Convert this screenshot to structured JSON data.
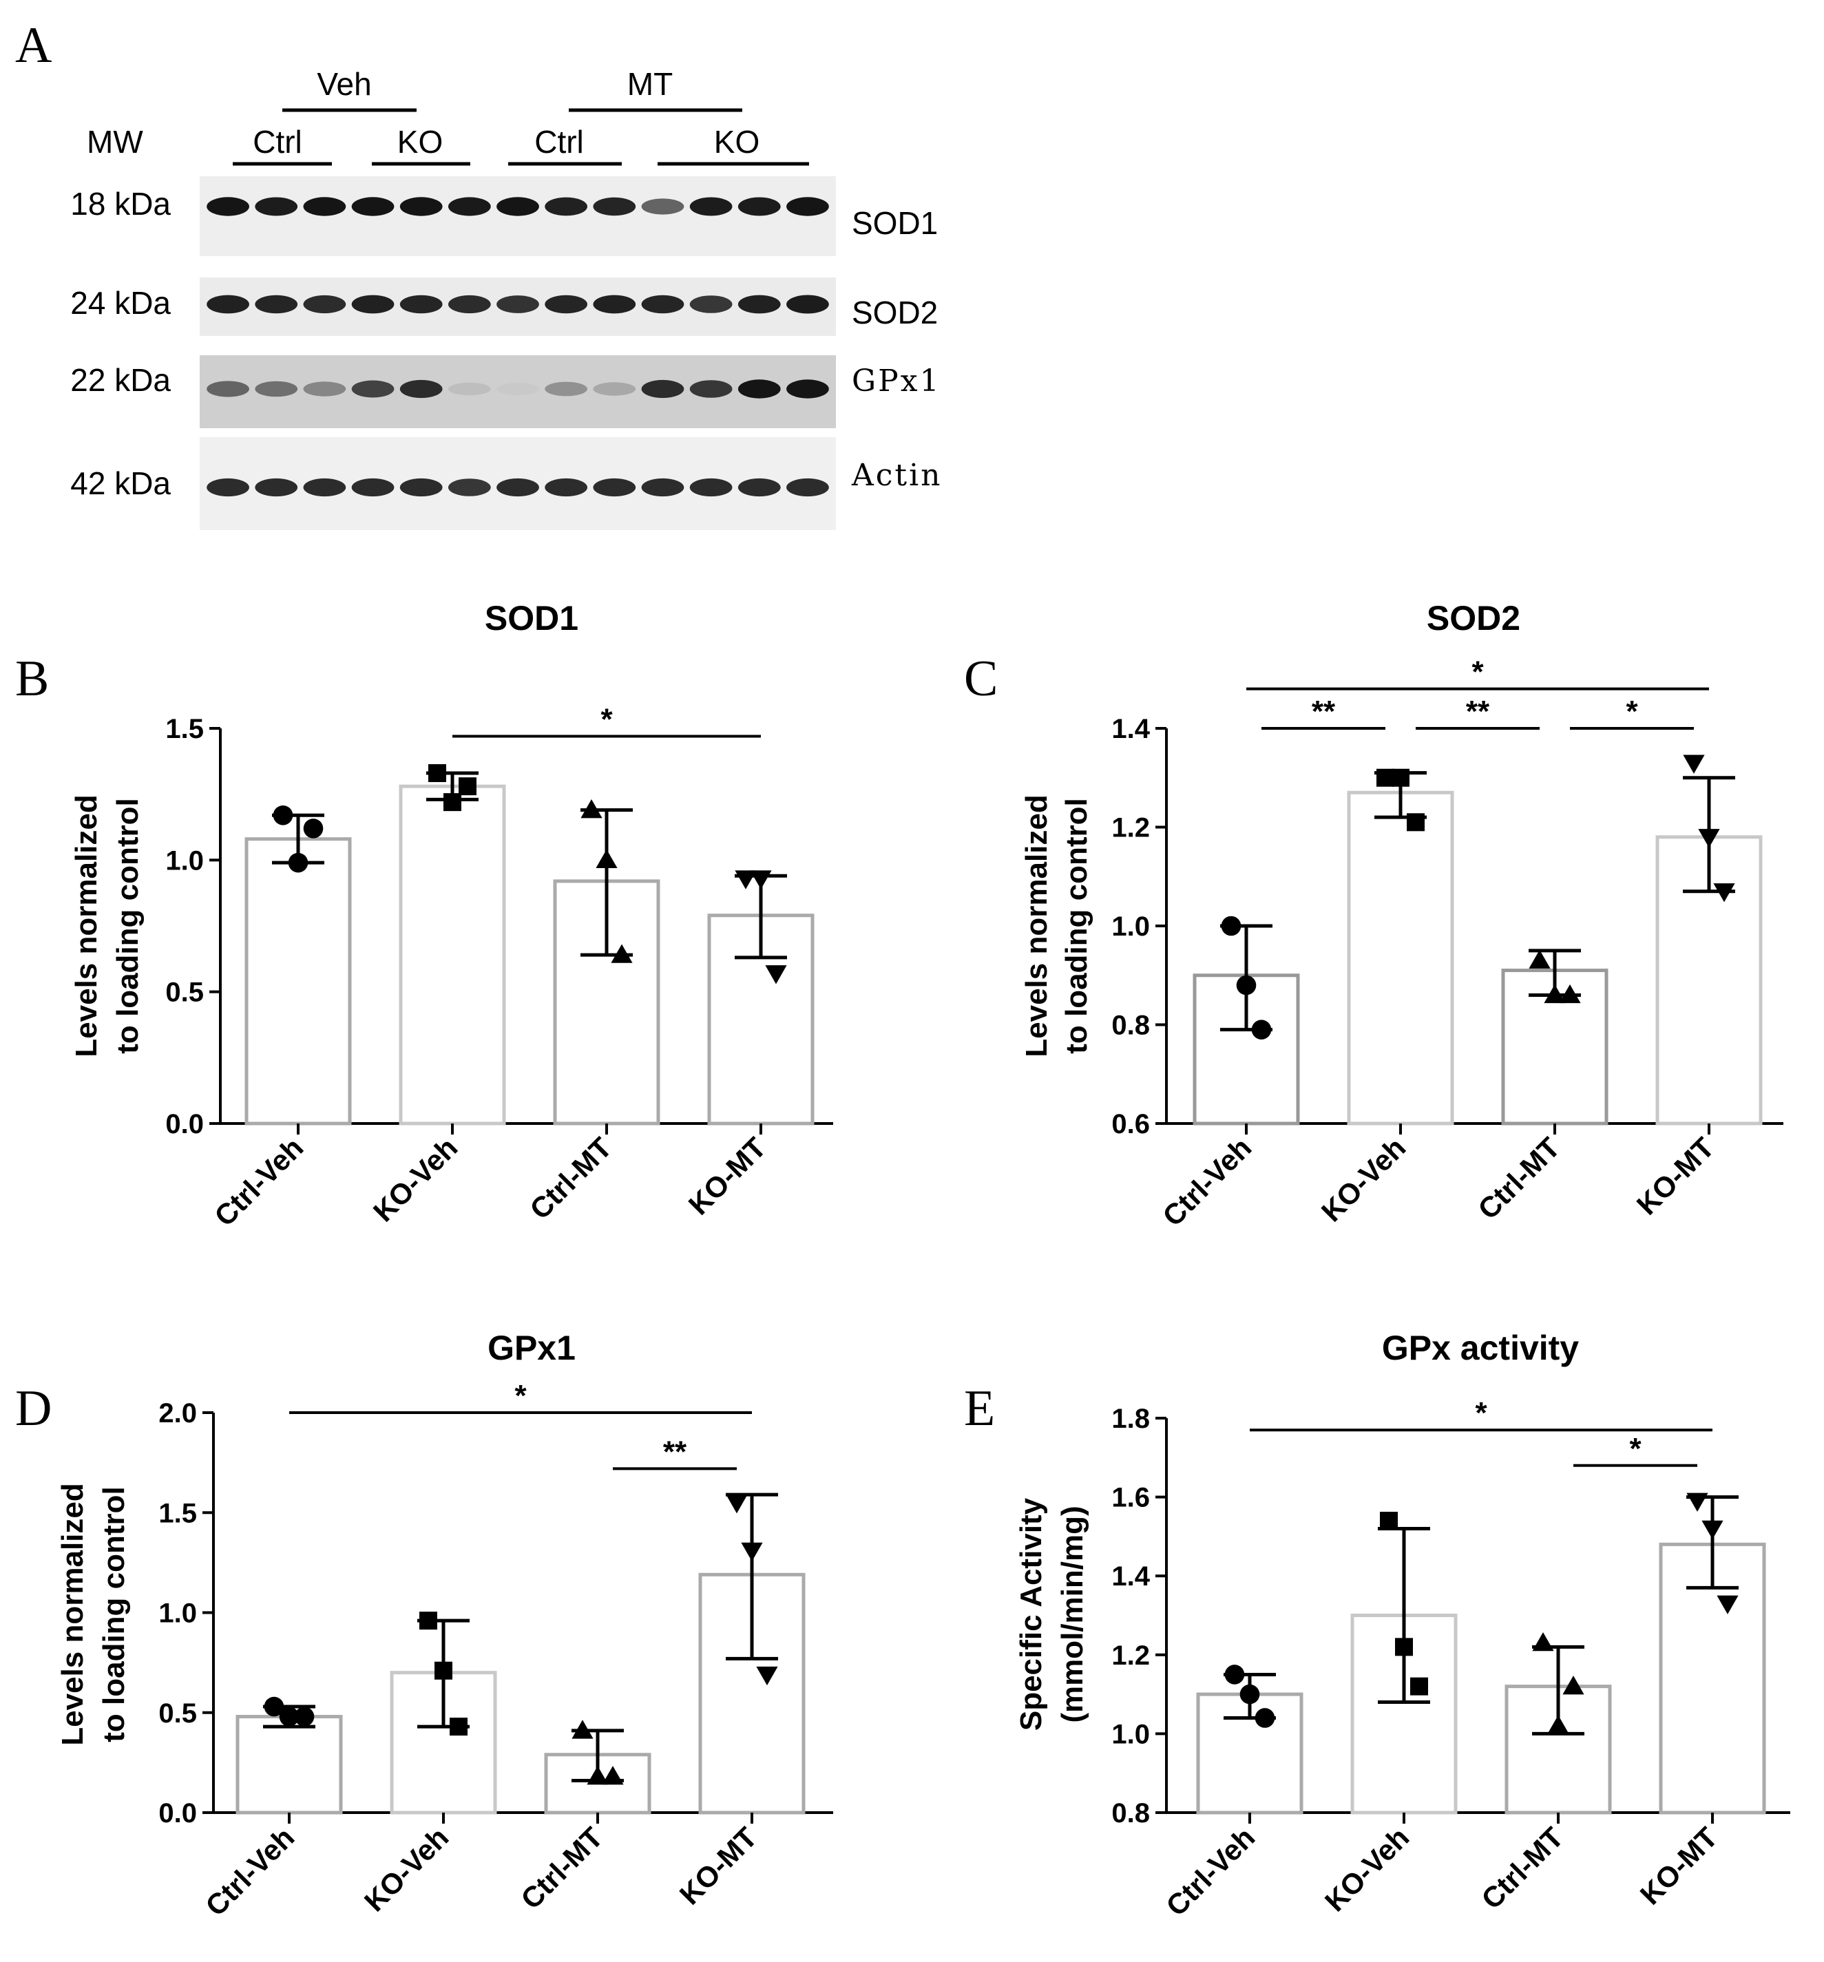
{
  "blot": {
    "panel_letter": "A",
    "mw_label": "MW",
    "groups": [
      {
        "label": "Veh",
        "subgroups": [
          "Ctrl",
          "KO"
        ]
      },
      {
        "label": "MT",
        "subgroups": [
          "Ctrl",
          "KO"
        ]
      }
    ],
    "rows": [
      {
        "mw": "18 kDa",
        "protein": "SOD1",
        "lane_intensity": [
          0.95,
          0.92,
          0.95,
          0.95,
          0.95,
          0.93,
          0.95,
          0.9,
          0.88,
          0.6,
          0.92,
          0.92,
          0.95
        ],
        "bg": "#eeeeee"
      },
      {
        "mw": "24 kDa",
        "protein": "SOD2",
        "lane_intensity": [
          0.9,
          0.88,
          0.85,
          0.9,
          0.88,
          0.85,
          0.82,
          0.88,
          0.9,
          0.88,
          0.8,
          0.9,
          0.92
        ],
        "bg": "#ebebeb"
      },
      {
        "mw": "22 kDa",
        "protein": "GPx1",
        "lane_intensity": [
          0.6,
          0.55,
          0.45,
          0.75,
          0.85,
          0.2,
          0.15,
          0.4,
          0.3,
          0.85,
          0.8,
          0.95,
          0.95
        ],
        "bg": "#cfcfcf"
      },
      {
        "mw": "42 kDa",
        "protein": "Actin",
        "lane_intensity": [
          0.85,
          0.85,
          0.85,
          0.85,
          0.85,
          0.8,
          0.85,
          0.85,
          0.85,
          0.85,
          0.85,
          0.85,
          0.85
        ],
        "bg": "#f0f0f0"
      }
    ]
  },
  "chart_data": [
    {
      "panel": "B",
      "type": "bar",
      "title": "SOD1",
      "ylabel": [
        "Levels normalized",
        "to loading control"
      ],
      "categories": [
        "Ctrl-Veh",
        "KO-Veh",
        "Ctrl-MT",
        "KO-MT"
      ],
      "values": [
        1.08,
        1.28,
        0.92,
        0.79
      ],
      "error_low": [
        0.99,
        1.23,
        0.64,
        0.63
      ],
      "error_high": [
        1.17,
        1.33,
        1.19,
        0.94
      ],
      "points": [
        [
          1.17,
          0.99,
          1.12
        ],
        [
          1.33,
          1.22,
          1.28
        ],
        [
          1.19,
          1.0,
          0.64
        ],
        [
          0.93,
          0.93,
          0.57
        ]
      ],
      "markers": [
        "circle",
        "square",
        "triangle-up",
        "triangle-down"
      ],
      "bar_colors": [
        "#aaaaaa",
        "#c8c8c8",
        "#aaaaaa",
        "#aaaaaa"
      ],
      "ylim": [
        0.0,
        1.5
      ],
      "yticks": [
        "0.0",
        "0.5",
        "1.0",
        "1.5"
      ],
      "significance": [
        {
          "from": 1,
          "to": 3,
          "label": "*",
          "level": 1.47
        }
      ]
    },
    {
      "panel": "C",
      "type": "bar",
      "title": "SOD2",
      "ylabel": [
        "Levels normalized",
        "to loading control"
      ],
      "categories": [
        "Ctrl-Veh",
        "KO-Veh",
        "Ctrl-MT",
        "KO-MT"
      ],
      "values": [
        0.9,
        1.27,
        0.91,
        1.18
      ],
      "error_low": [
        0.79,
        1.22,
        0.86,
        1.07
      ],
      "error_high": [
        1.0,
        1.31,
        0.95,
        1.3
      ],
      "points": [
        [
          1.0,
          0.88,
          0.79
        ],
        [
          1.3,
          1.3,
          1.21
        ],
        [
          0.93,
          0.86,
          0.86
        ],
        [
          1.33,
          1.18,
          1.07
        ]
      ],
      "markers": [
        "circle",
        "square",
        "triangle-up",
        "triangle-down"
      ],
      "bar_colors": [
        "#999999",
        "#c8c8c8",
        "#999999",
        "#c8c8c8"
      ],
      "ylim": [
        0.6,
        1.4
      ],
      "yticks": [
        "0.6",
        "0.8",
        "1.0",
        "1.2",
        "1.4"
      ],
      "significance": [
        {
          "from": 0,
          "to": 3,
          "label": "*",
          "level": 1.48
        },
        {
          "from": 0,
          "to": 1,
          "label": "**",
          "level": 1.4
        },
        {
          "from": 1,
          "to": 2,
          "label": "**",
          "level": 1.4
        },
        {
          "from": 2,
          "to": 3,
          "label": "*",
          "level": 1.4
        }
      ]
    },
    {
      "panel": "D",
      "type": "bar",
      "title": "GPx1",
      "ylabel": [
        "Levels normalized",
        "to loading control"
      ],
      "categories": [
        "Ctrl-Veh",
        "KO-Veh",
        "Ctrl-MT",
        "KO-MT"
      ],
      "values": [
        0.48,
        0.7,
        0.29,
        1.19
      ],
      "error_low": [
        0.43,
        0.43,
        0.16,
        0.77
      ],
      "error_high": [
        0.53,
        0.96,
        0.41,
        1.59
      ],
      "points": [
        [
          0.53,
          0.48,
          0.48
        ],
        [
          0.96,
          0.71,
          0.43
        ],
        [
          0.41,
          0.18,
          0.18
        ],
        [
          1.55,
          1.31,
          0.69
        ]
      ],
      "markers": [
        "circle",
        "square",
        "triangle-up",
        "triangle-down"
      ],
      "bar_colors": [
        "#aaaaaa",
        "#c8c8c8",
        "#aaaaaa",
        "#aaaaaa"
      ],
      "ylim": [
        0.0,
        2.0
      ],
      "yticks": [
        "0.0",
        "0.5",
        "1.0",
        "1.5",
        "2.0"
      ],
      "significance": [
        {
          "from": 0,
          "to": 3,
          "label": "*",
          "level": 2.0
        },
        {
          "from": 2,
          "to": 3,
          "label": "**",
          "level": 1.72
        }
      ]
    },
    {
      "panel": "E",
      "type": "bar",
      "title": "GPx activity",
      "ylabel": [
        "Specific Activity",
        "(mmol/min/mg)"
      ],
      "categories": [
        "Ctrl-Veh",
        "KO-Veh",
        "Ctrl-MT",
        "KO-MT"
      ],
      "values": [
        1.1,
        1.3,
        1.12,
        1.48
      ],
      "error_low": [
        1.04,
        1.08,
        1.0,
        1.37
      ],
      "error_high": [
        1.15,
        1.52,
        1.22,
        1.6
      ],
      "points": [
        [
          1.15,
          1.1,
          1.04
        ],
        [
          1.54,
          1.22,
          1.12
        ],
        [
          1.23,
          1.02,
          1.12
        ],
        [
          1.59,
          1.52,
          1.33
        ]
      ],
      "markers": [
        "circle",
        "square",
        "triangle-up",
        "triangle-down"
      ],
      "bar_colors": [
        "#aaaaaa",
        "#c8c8c8",
        "#aaaaaa",
        "#aaaaaa"
      ],
      "ylim": [
        0.8,
        1.8
      ],
      "yticks": [
        "0.8",
        "1.0",
        "1.2",
        "1.4",
        "1.6",
        "1.8"
      ],
      "significance": [
        {
          "from": 0,
          "to": 3,
          "label": "*",
          "level": 1.77
        },
        {
          "from": 2,
          "to": 3,
          "label": "*",
          "level": 1.68
        }
      ]
    }
  ]
}
